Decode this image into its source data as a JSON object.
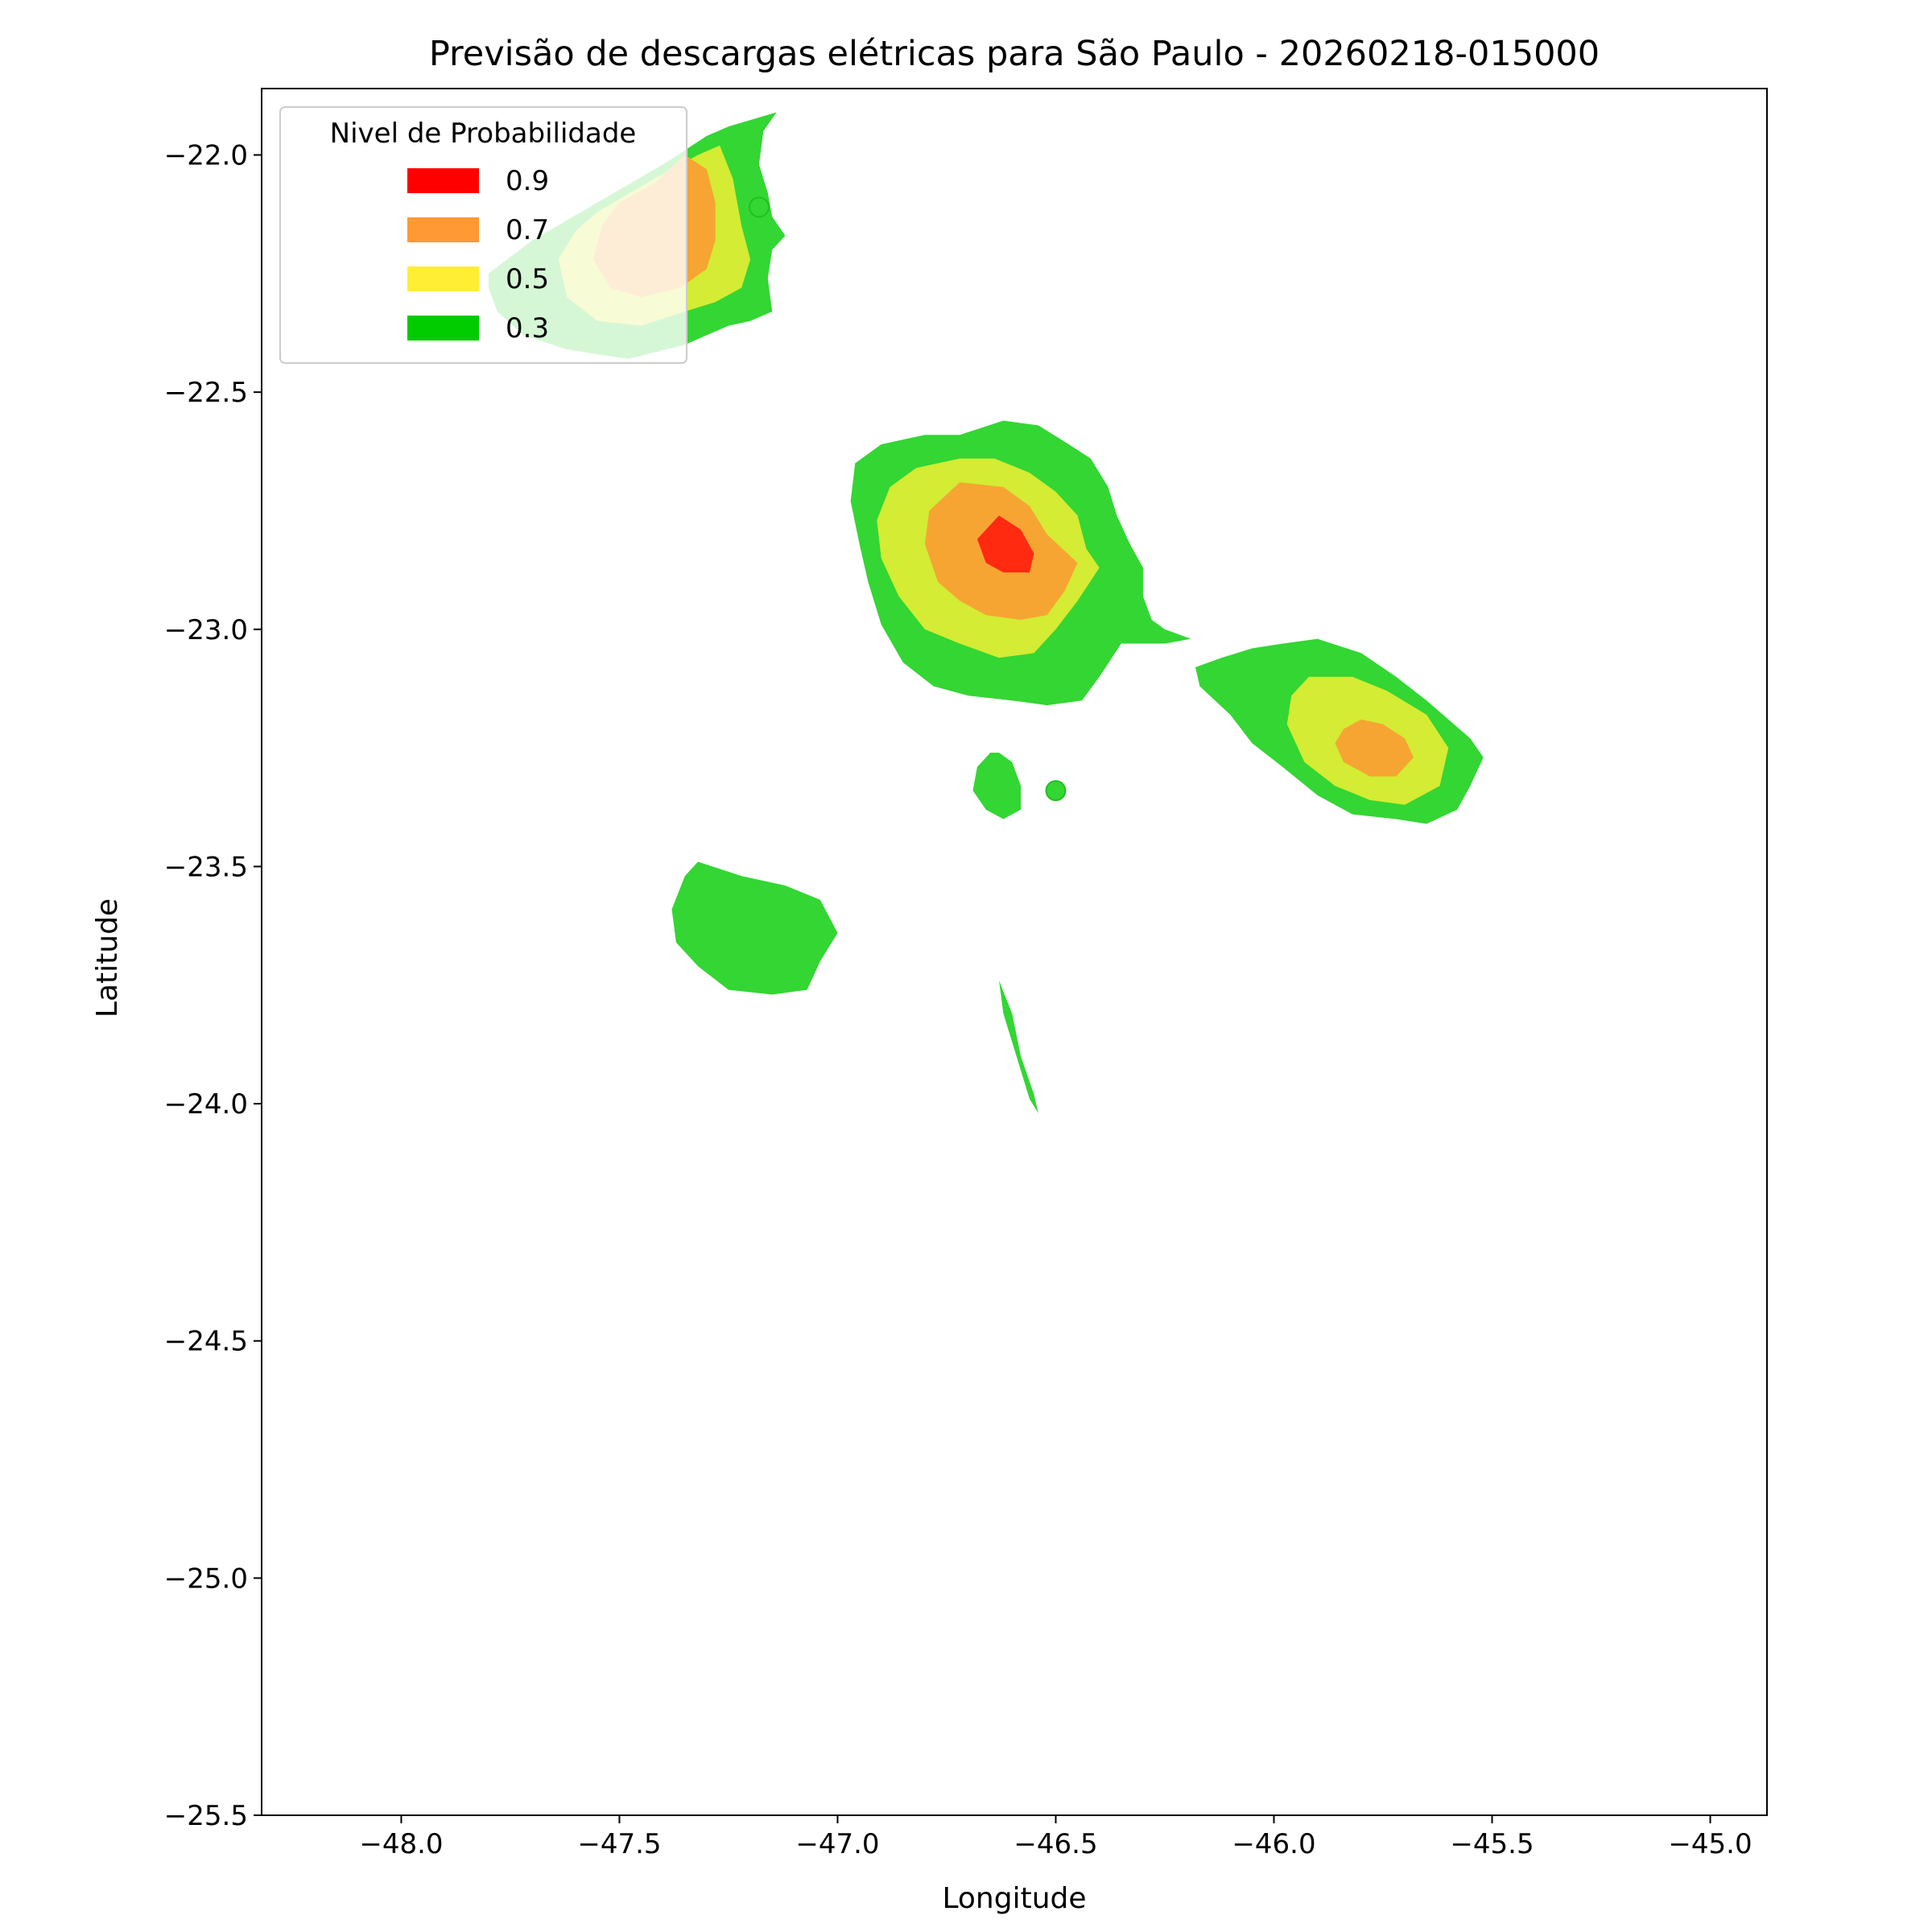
{
  "chart_data": {
    "type": "contour",
    "title": "Previsão de descargas elétricas para São Paulo - 20260218-015000",
    "xlabel": "Longitude",
    "ylabel": "Latitude",
    "xlim": [
      -48.32,
      -44.87
    ],
    "ylim": [
      -25.5,
      -21.86
    ],
    "xticks": [
      {
        "value": -48.0,
        "label": "−48.0"
      },
      {
        "value": -47.5,
        "label": "−47.5"
      },
      {
        "value": -47.0,
        "label": "−47.0"
      },
      {
        "value": -46.5,
        "label": "−46.5"
      },
      {
        "value": -46.0,
        "label": "−46.0"
      },
      {
        "value": -45.5,
        "label": "−45.5"
      },
      {
        "value": -45.0,
        "label": "−45.0"
      }
    ],
    "yticks": [
      {
        "value": -22.0,
        "label": "−22.0"
      },
      {
        "value": -22.5,
        "label": "−22.5"
      },
      {
        "value": -23.0,
        "label": "−23.0"
      },
      {
        "value": -23.5,
        "label": "−23.5"
      },
      {
        "value": -24.0,
        "label": "−24.0"
      },
      {
        "value": -24.5,
        "label": "−24.5"
      },
      {
        "value": -25.0,
        "label": "−25.0"
      },
      {
        "value": -25.5,
        "label": "−25.5"
      }
    ],
    "grid": false,
    "legend": {
      "title": "Nivel de Probabilidade",
      "placement": "top-left",
      "entries": [
        {
          "label": "0.9",
          "color": "#ff0000"
        },
        {
          "label": "0.7",
          "color": "#ff9933"
        },
        {
          "label": "0.5",
          "color": "#ffee33"
        },
        {
          "label": "0.3",
          "color": "#00cc00"
        }
      ]
    },
    "level_colors": {
      "0.3": "#33d633",
      "0.5": "#d4ec33",
      "0.7": "#f6a533",
      "0.9": "#ff2a10"
    },
    "regions": [
      {
        "level": "0.3",
        "points": [
          [
            -47.8,
            -22.25
          ],
          [
            -47.7,
            -22.18
          ],
          [
            -47.55,
            -22.1
          ],
          [
            -47.4,
            -22.02
          ],
          [
            -47.3,
            -21.96
          ],
          [
            -47.25,
            -21.94
          ],
          [
            -47.14,
            -21.91
          ],
          [
            -47.17,
            -21.95
          ],
          [
            -47.18,
            -22.02
          ],
          [
            -47.16,
            -22.08
          ],
          [
            -47.15,
            -22.13
          ],
          [
            -47.12,
            -22.17
          ],
          [
            -47.15,
            -22.2
          ],
          [
            -47.16,
            -22.26
          ],
          [
            -47.15,
            -22.33
          ],
          [
            -47.2,
            -22.35
          ],
          [
            -47.25,
            -22.36
          ],
          [
            -47.3,
            -22.38
          ],
          [
            -47.35,
            -22.4
          ],
          [
            -47.48,
            -22.43
          ],
          [
            -47.62,
            -22.41
          ],
          [
            -47.72,
            -22.38
          ],
          [
            -47.78,
            -22.33
          ],
          [
            -47.8,
            -22.28
          ]
        ]
      },
      {
        "level": "0.5",
        "points": [
          [
            -47.55,
            -22.12
          ],
          [
            -47.42,
            -22.05
          ],
          [
            -47.32,
            -22.0
          ],
          [
            -47.27,
            -21.98
          ],
          [
            -47.24,
            -22.05
          ],
          [
            -47.22,
            -22.15
          ],
          [
            -47.2,
            -22.22
          ],
          [
            -47.22,
            -22.28
          ],
          [
            -47.28,
            -22.31
          ],
          [
            -47.35,
            -22.33
          ],
          [
            -47.45,
            -22.36
          ],
          [
            -47.55,
            -22.35
          ],
          [
            -47.62,
            -22.3
          ],
          [
            -47.64,
            -22.22
          ],
          [
            -47.6,
            -22.16
          ]
        ]
      },
      {
        "level": "0.7",
        "points": [
          [
            -47.5,
            -22.1
          ],
          [
            -47.42,
            -22.06
          ],
          [
            -47.35,
            -22.0
          ],
          [
            -47.3,
            -22.03
          ],
          [
            -47.28,
            -22.1
          ],
          [
            -47.28,
            -22.18
          ],
          [
            -47.3,
            -22.24
          ],
          [
            -47.36,
            -22.28
          ],
          [
            -47.45,
            -22.3
          ],
          [
            -47.52,
            -22.28
          ],
          [
            -47.56,
            -22.22
          ],
          [
            -47.54,
            -22.15
          ]
        ]
      },
      {
        "level": "0.3",
        "points": [
          [
            -46.72,
            -22.59
          ],
          [
            -46.62,
            -22.56
          ],
          [
            -46.54,
            -22.57
          ],
          [
            -46.47,
            -22.61
          ],
          [
            -46.42,
            -22.64
          ],
          [
            -46.38,
            -22.7
          ],
          [
            -46.36,
            -22.76
          ],
          [
            -46.33,
            -22.82
          ],
          [
            -46.3,
            -22.87
          ],
          [
            -46.3,
            -22.93
          ],
          [
            -46.28,
            -22.98
          ],
          [
            -46.25,
            -23.0
          ],
          [
            -46.19,
            -23.02
          ],
          [
            -46.25,
            -23.03
          ],
          [
            -46.35,
            -23.03
          ],
          [
            -46.4,
            -23.1
          ],
          [
            -46.44,
            -23.15
          ],
          [
            -46.52,
            -23.16
          ],
          [
            -46.6,
            -23.15
          ],
          [
            -46.7,
            -23.14
          ],
          [
            -46.78,
            -23.12
          ],
          [
            -46.85,
            -23.07
          ],
          [
            -46.9,
            -22.99
          ],
          [
            -46.93,
            -22.9
          ],
          [
            -46.95,
            -22.82
          ],
          [
            -46.97,
            -22.73
          ],
          [
            -46.96,
            -22.65
          ],
          [
            -46.9,
            -22.61
          ],
          [
            -46.8,
            -22.59
          ]
        ]
      },
      {
        "level": "0.5",
        "points": [
          [
            -46.72,
            -22.64
          ],
          [
            -46.64,
            -22.64
          ],
          [
            -46.56,
            -22.67
          ],
          [
            -46.5,
            -22.71
          ],
          [
            -46.45,
            -22.76
          ],
          [
            -46.43,
            -22.83
          ],
          [
            -46.4,
            -22.87
          ],
          [
            -46.45,
            -22.94
          ],
          [
            -46.5,
            -23.0
          ],
          [
            -46.55,
            -23.05
          ],
          [
            -46.63,
            -23.06
          ],
          [
            -46.72,
            -23.03
          ],
          [
            -46.8,
            -23.0
          ],
          [
            -46.86,
            -22.93
          ],
          [
            -46.9,
            -22.85
          ],
          [
            -46.91,
            -22.77
          ],
          [
            -46.88,
            -22.7
          ],
          [
            -46.82,
            -22.66
          ]
        ]
      },
      {
        "level": "0.7",
        "points": [
          [
            -46.72,
            -22.69
          ],
          [
            -46.62,
            -22.7
          ],
          [
            -46.56,
            -22.74
          ],
          [
            -46.52,
            -22.8
          ],
          [
            -46.45,
            -22.86
          ],
          [
            -46.48,
            -22.92
          ],
          [
            -46.52,
            -22.97
          ],
          [
            -46.58,
            -22.98
          ],
          [
            -46.66,
            -22.97
          ],
          [
            -46.72,
            -22.94
          ],
          [
            -46.77,
            -22.9
          ],
          [
            -46.8,
            -22.82
          ],
          [
            -46.79,
            -22.75
          ]
        ]
      },
      {
        "level": "0.9",
        "points": [
          [
            -46.63,
            -22.76
          ],
          [
            -46.58,
            -22.79
          ],
          [
            -46.55,
            -22.84
          ],
          [
            -46.56,
            -22.88
          ],
          [
            -46.62,
            -22.88
          ],
          [
            -46.66,
            -22.86
          ],
          [
            -46.68,
            -22.81
          ]
        ]
      },
      {
        "level": "0.3",
        "points": [
          [
            -45.98,
            -23.03
          ],
          [
            -45.9,
            -23.02
          ],
          [
            -45.8,
            -23.05
          ],
          [
            -45.72,
            -23.1
          ],
          [
            -45.65,
            -23.15
          ],
          [
            -45.55,
            -23.23
          ],
          [
            -45.52,
            -23.27
          ],
          [
            -45.55,
            -23.33
          ],
          [
            -45.58,
            -23.38
          ],
          [
            -45.65,
            -23.41
          ],
          [
            -45.72,
            -23.4
          ],
          [
            -45.82,
            -23.39
          ],
          [
            -45.9,
            -23.35
          ],
          [
            -45.98,
            -23.29
          ],
          [
            -46.05,
            -23.24
          ],
          [
            -46.1,
            -23.18
          ],
          [
            -46.17,
            -23.12
          ],
          [
            -46.18,
            -23.08
          ],
          [
            -46.12,
            -23.06
          ],
          [
            -46.05,
            -23.04
          ]
        ]
      },
      {
        "level": "0.5",
        "points": [
          [
            -45.92,
            -23.1
          ],
          [
            -45.82,
            -23.1
          ],
          [
            -45.74,
            -23.13
          ],
          [
            -45.65,
            -23.18
          ],
          [
            -45.6,
            -23.25
          ],
          [
            -45.62,
            -23.33
          ],
          [
            -45.7,
            -23.37
          ],
          [
            -45.78,
            -23.36
          ],
          [
            -45.86,
            -23.33
          ],
          [
            -45.93,
            -23.28
          ],
          [
            -45.97,
            -23.2
          ],
          [
            -45.96,
            -23.14
          ]
        ]
      },
      {
        "level": "0.7",
        "points": [
          [
            -45.8,
            -23.19
          ],
          [
            -45.75,
            -23.2
          ],
          [
            -45.7,
            -23.23
          ],
          [
            -45.68,
            -23.27
          ],
          [
            -45.72,
            -23.31
          ],
          [
            -45.78,
            -23.31
          ],
          [
            -45.84,
            -23.28
          ],
          [
            -45.86,
            -23.24
          ],
          [
            -45.84,
            -23.21
          ]
        ]
      },
      {
        "level": "0.3",
        "points": [
          [
            -46.63,
            -23.26
          ],
          [
            -46.6,
            -23.28
          ],
          [
            -46.58,
            -23.33
          ],
          [
            -46.58,
            -23.38
          ],
          [
            -46.62,
            -23.4
          ],
          [
            -46.66,
            -23.38
          ],
          [
            -46.69,
            -23.34
          ],
          [
            -46.68,
            -23.29
          ],
          [
            -46.65,
            -23.26
          ]
        ]
      },
      {
        "level": "0.3",
        "points": [
          [
            -47.32,
            -23.49
          ],
          [
            -47.22,
            -23.52
          ],
          [
            -47.12,
            -23.54
          ],
          [
            -47.04,
            -23.57
          ],
          [
            -47.0,
            -23.64
          ],
          [
            -47.04,
            -23.7
          ],
          [
            -47.07,
            -23.76
          ],
          [
            -47.15,
            -23.77
          ],
          [
            -47.25,
            -23.76
          ],
          [
            -47.32,
            -23.71
          ],
          [
            -47.37,
            -23.66
          ],
          [
            -47.38,
            -23.59
          ],
          [
            -47.35,
            -23.52
          ]
        ]
      },
      {
        "level": "0.3",
        "points": [
          [
            -46.63,
            -23.74
          ],
          [
            -46.6,
            -23.81
          ],
          [
            -46.58,
            -23.9
          ],
          [
            -46.55,
            -23.98
          ],
          [
            -46.54,
            -24.02
          ],
          [
            -46.56,
            -23.99
          ],
          [
            -46.58,
            -23.93
          ],
          [
            -46.6,
            -23.87
          ],
          [
            -46.62,
            -23.81
          ]
        ]
      }
    ],
    "markers": [
      {
        "x": -47.18,
        "y": -22.11,
        "level": "0.3"
      },
      {
        "x": -46.5,
        "y": -23.34,
        "level": "0.3"
      }
    ]
  }
}
